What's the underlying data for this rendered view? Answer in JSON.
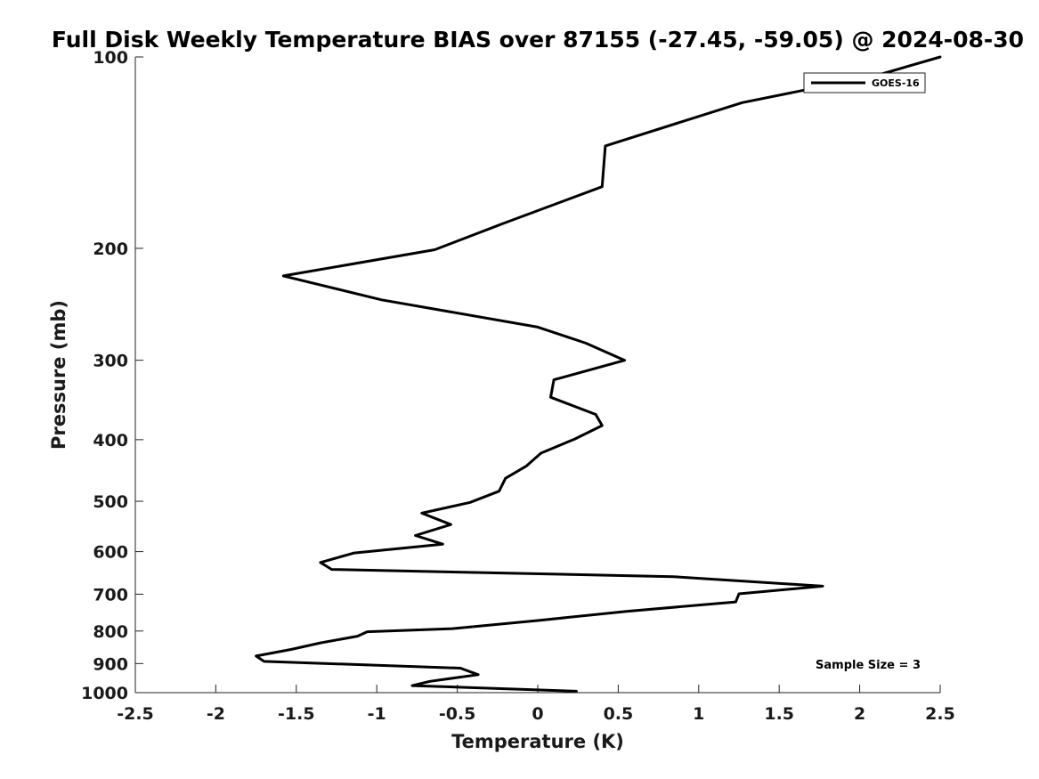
{
  "chart_data": {
    "type": "line",
    "title": "Full Disk Weekly Temperature BIAS over 87155 (-27.45, -59.05) @ 2024-08-30",
    "xlabel": "Temperature (K)",
    "ylabel": "Pressure (mb)",
    "xlim": [
      -2.5,
      2.5
    ],
    "ylim": [
      100,
      1000
    ],
    "y_scale": "log",
    "y_reversed": true,
    "x_ticks": [
      -2.5,
      -2,
      -1.5,
      -1,
      -0.5,
      0,
      0.5,
      1,
      1.5,
      2,
      2.5
    ],
    "x_tick_labels": [
      "-2.5",
      "-2",
      "-1.5",
      "-1",
      "-0.5",
      "0",
      "0.5",
      "1",
      "1.5",
      "2",
      "2.5"
    ],
    "y_ticks": [
      100,
      200,
      300,
      400,
      500,
      600,
      700,
      800,
      900,
      1000
    ],
    "y_tick_labels": [
      "100",
      "200",
      "300",
      "400",
      "500",
      "600",
      "700",
      "800",
      "900",
      "1000"
    ],
    "grid": false,
    "legend_position": "top-right",
    "annotation": "Sample Size = 3",
    "series": [
      {
        "name": "GOES-16",
        "color": "#000000",
        "x": [
          2.5,
          2.1,
          1.27,
          0.42,
          0.4,
          -0.22,
          -0.64,
          -1.58,
          -0.97,
          0.0,
          0.3,
          0.54,
          0.1,
          0.08,
          0.36,
          0.4,
          0.23,
          0.02,
          -0.07,
          -0.2,
          -0.24,
          -0.42,
          -0.72,
          -0.54,
          -0.76,
          -0.59,
          -1.14,
          -1.35,
          -1.28,
          0.84,
          1.77,
          1.25,
          1.23,
          0.55,
          0.0,
          -0.53,
          -1.06,
          -1.12,
          -1.35,
          -1.53,
          -1.75,
          -1.7,
          -0.48,
          -0.37,
          -0.67,
          -0.78,
          0.24
        ],
        "y": [
          100,
          107,
          118,
          138,
          160,
          183,
          201,
          221,
          241,
          266,
          282,
          300,
          322,
          343,
          365,
          380,
          399,
          420,
          440,
          460,
          482,
          502,
          522,
          544,
          566,
          584,
          603,
          624,
          640,
          657,
          680,
          699,
          720,
          745,
          770,
          793,
          802,
          815,
          835,
          855,
          876,
          893,
          915,
          937,
          960,
          975,
          995
        ]
      }
    ]
  }
}
